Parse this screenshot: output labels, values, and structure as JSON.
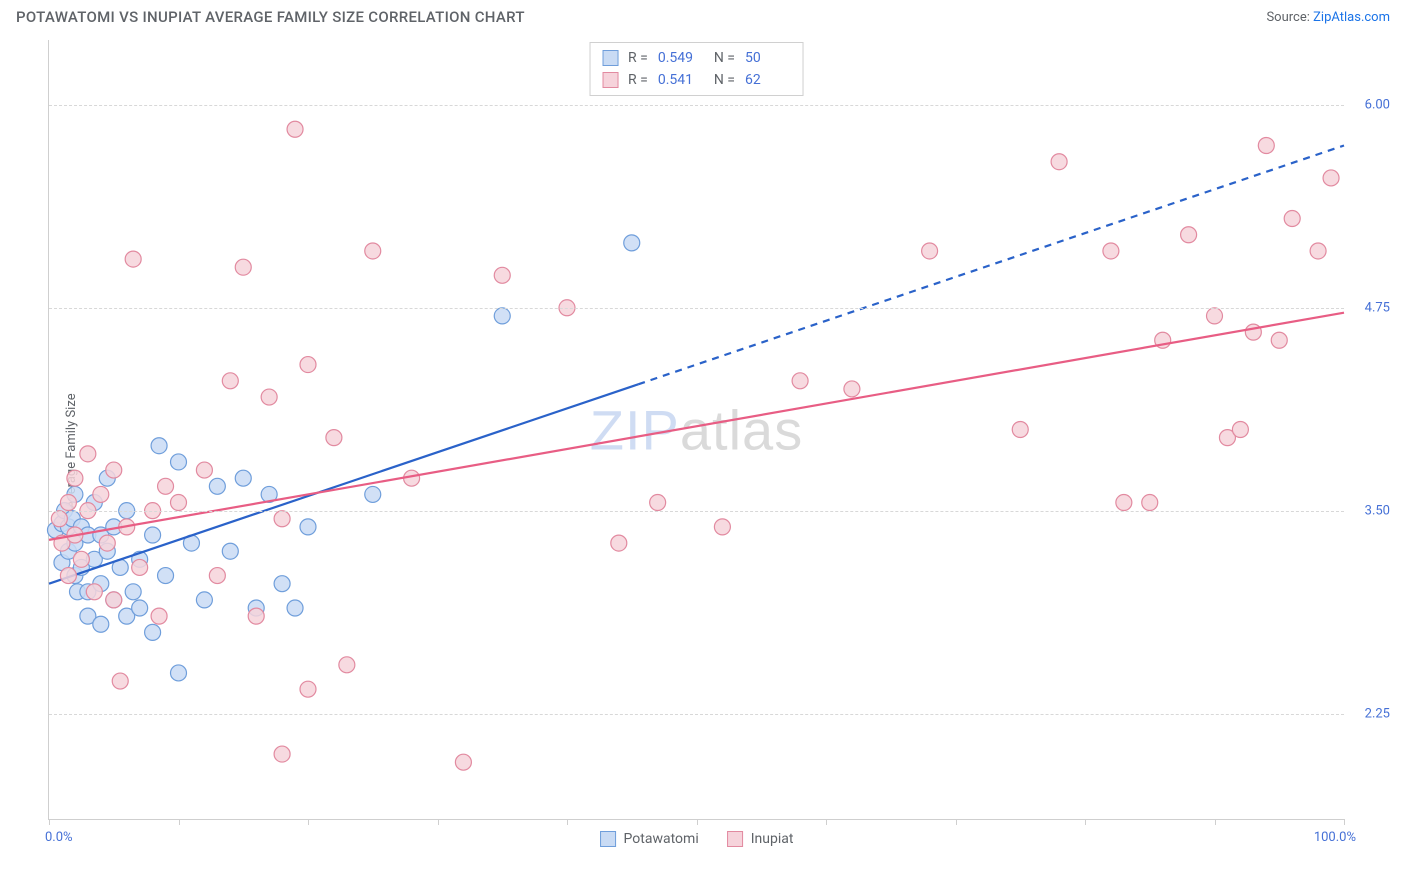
{
  "header": {
    "title": "POTAWATOMI VS INUPIAT AVERAGE FAMILY SIZE CORRELATION CHART",
    "source_label": "Source:",
    "source_name": "ZipAtlas.com"
  },
  "chart": {
    "type": "scatter",
    "ylabel": "Average Family Size",
    "watermark_a": "ZIP",
    "watermark_b": "atlas",
    "xlim": [
      0,
      100
    ],
    "ylim": [
      1.6,
      6.4
    ],
    "x_ticks": [
      0,
      10,
      20,
      30,
      40,
      50,
      60,
      70,
      80,
      90,
      100
    ],
    "x_start_label": "0.0%",
    "x_end_label": "100.0%",
    "y_grid": [
      {
        "v": 2.25,
        "label": "2.25"
      },
      {
        "v": 3.5,
        "label": "3.50"
      },
      {
        "v": 4.75,
        "label": "4.75"
      },
      {
        "v": 6.0,
        "label": "6.00"
      }
    ],
    "marker_radius": 8,
    "marker_stroke_width": 1.2,
    "line_width": 2.2,
    "grid_color": "#d8d8d8",
    "axis_color": "#cfcfcf",
    "background_color": "#ffffff",
    "title_fontsize": 15,
    "label_fontsize": 13,
    "tick_color": "#4570d6",
    "series": [
      {
        "key": "potawatomi",
        "label": "Potawatomi",
        "fill": "#c9dbf4",
        "stroke": "#6f9edb",
        "line_color": "#2a62c9",
        "r_label": "R =",
        "r_value": "0.549",
        "n_label": "N =",
        "n_value": "50",
        "trend": {
          "x1": 0,
          "y1": 3.05,
          "x_solid_end": 45.5,
          "x2": 100,
          "y2": 5.75
        },
        "points": [
          [
            0.5,
            3.38
          ],
          [
            1,
            3.42
          ],
          [
            1,
            3.18
          ],
          [
            1.2,
            3.5
          ],
          [
            1.5,
            3.4
          ],
          [
            1.5,
            3.25
          ],
          [
            1.8,
            3.45
          ],
          [
            2,
            3.6
          ],
          [
            2,
            3.3
          ],
          [
            2,
            3.1
          ],
          [
            2.2,
            3.0
          ],
          [
            2.5,
            3.4
          ],
          [
            2.5,
            3.15
          ],
          [
            3,
            3.35
          ],
          [
            3,
            3.0
          ],
          [
            3,
            2.85
          ],
          [
            3.5,
            3.55
          ],
          [
            3.5,
            3.2
          ],
          [
            4,
            3.35
          ],
          [
            4,
            3.05
          ],
          [
            4,
            2.8
          ],
          [
            4.5,
            3.7
          ],
          [
            4.5,
            3.25
          ],
          [
            5,
            3.4
          ],
          [
            5,
            2.95
          ],
          [
            5.5,
            3.15
          ],
          [
            6,
            3.5
          ],
          [
            6,
            2.85
          ],
          [
            6.5,
            3.0
          ],
          [
            7,
            3.2
          ],
          [
            7,
            2.9
          ],
          [
            8,
            3.35
          ],
          [
            8,
            2.75
          ],
          [
            8.5,
            3.9
          ],
          [
            9,
            3.1
          ],
          [
            10,
            3.8
          ],
          [
            10,
            2.5
          ],
          [
            11,
            3.3
          ],
          [
            12,
            2.95
          ],
          [
            13,
            3.65
          ],
          [
            14,
            3.25
          ],
          [
            15,
            3.7
          ],
          [
            16,
            2.9
          ],
          [
            17,
            3.6
          ],
          [
            18,
            3.05
          ],
          [
            19,
            2.9
          ],
          [
            20,
            3.4
          ],
          [
            25,
            3.6
          ],
          [
            35,
            4.7
          ],
          [
            45,
            5.15
          ]
        ]
      },
      {
        "key": "inupiat",
        "label": "Inupiat",
        "fill": "#f6d3db",
        "stroke": "#e28aa0",
        "line_color": "#e85d84",
        "r_label": "R =",
        "r_value": "0.541",
        "n_label": "N =",
        "n_value": "62",
        "trend": {
          "x1": 0,
          "y1": 3.32,
          "x_solid_end": 100,
          "x2": 100,
          "y2": 4.72
        },
        "points": [
          [
            0.8,
            3.45
          ],
          [
            1,
            3.3
          ],
          [
            1.5,
            3.55
          ],
          [
            1.5,
            3.1
          ],
          [
            2,
            3.35
          ],
          [
            2,
            3.7
          ],
          [
            2.5,
            3.2
          ],
          [
            3,
            3.5
          ],
          [
            3,
            3.85
          ],
          [
            3.5,
            3.0
          ],
          [
            4,
            3.6
          ],
          [
            4.5,
            3.3
          ],
          [
            5,
            3.75
          ],
          [
            5,
            2.95
          ],
          [
            5.5,
            2.45
          ],
          [
            6,
            3.4
          ],
          [
            6.5,
            5.05
          ],
          [
            7,
            3.15
          ],
          [
            8,
            3.5
          ],
          [
            8.5,
            2.85
          ],
          [
            9,
            3.65
          ],
          [
            10,
            3.55
          ],
          [
            12,
            3.75
          ],
          [
            13,
            3.1
          ],
          [
            14,
            4.3
          ],
          [
            15,
            5.0
          ],
          [
            16,
            2.85
          ],
          [
            17,
            4.2
          ],
          [
            18,
            3.45
          ],
          [
            18,
            2.0
          ],
          [
            19,
            5.85
          ],
          [
            20,
            4.4
          ],
          [
            20,
            2.4
          ],
          [
            22,
            3.95
          ],
          [
            23,
            2.55
          ],
          [
            25,
            5.1
          ],
          [
            28,
            3.7
          ],
          [
            32,
            1.95
          ],
          [
            35,
            4.95
          ],
          [
            40,
            4.75
          ],
          [
            44,
            3.3
          ],
          [
            47,
            3.55
          ],
          [
            52,
            3.4
          ],
          [
            58,
            4.3
          ],
          [
            62,
            4.25
          ],
          [
            68,
            5.1
          ],
          [
            75,
            4.0
          ],
          [
            78,
            5.65
          ],
          [
            82,
            5.1
          ],
          [
            83,
            3.55
          ],
          [
            85,
            3.55
          ],
          [
            86,
            4.55
          ],
          [
            88,
            5.2
          ],
          [
            90,
            4.7
          ],
          [
            91,
            3.95
          ],
          [
            92,
            4.0
          ],
          [
            93,
            4.6
          ],
          [
            94,
            5.75
          ],
          [
            95,
            4.55
          ],
          [
            96,
            5.3
          ],
          [
            98,
            5.1
          ],
          [
            99,
            5.55
          ]
        ]
      }
    ]
  }
}
